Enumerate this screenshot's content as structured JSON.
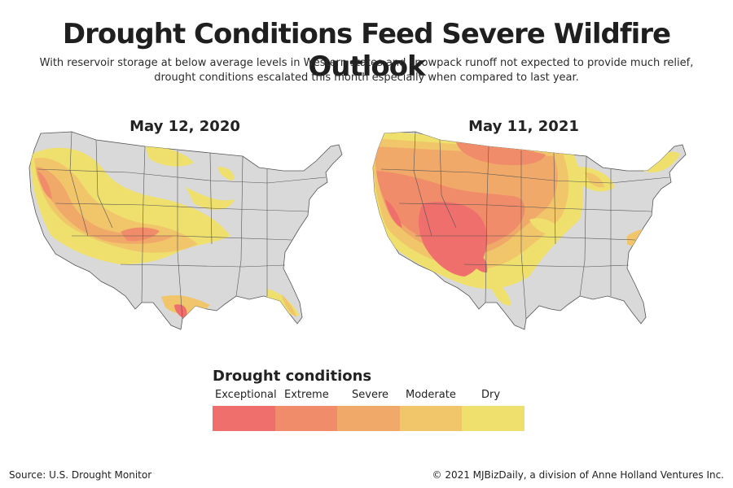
{
  "header": {
    "title": "Drought Conditions Feed Severe Wildfire Outlook",
    "subtitle": "With reservoir storage at below average levels in Western states and snowpack runoff not expected to provide much relief, drought conditions escalated this month especially when compared to last year."
  },
  "maps": [
    {
      "date": "May 12, 2020"
    },
    {
      "date": "May 11, 2021"
    }
  ],
  "legend": {
    "title": "Drought conditions",
    "categories": [
      {
        "label": "Exceptional",
        "color": "#ef6f6c"
      },
      {
        "label": "Extreme",
        "color": "#f08c69"
      },
      {
        "label": "Severe",
        "color": "#f1a96a"
      },
      {
        "label": "Moderate",
        "color": "#f1c56a"
      },
      {
        "label": "Dry",
        "color": "#efe06e"
      }
    ]
  },
  "colors": {
    "land": "#d9d9d9",
    "borders": "#555555"
  },
  "footer": {
    "source": "Source: U.S. Drought Monitor",
    "credit": "© 2021 MJBizDaily, a division of Anne Holland Ventures Inc."
  }
}
